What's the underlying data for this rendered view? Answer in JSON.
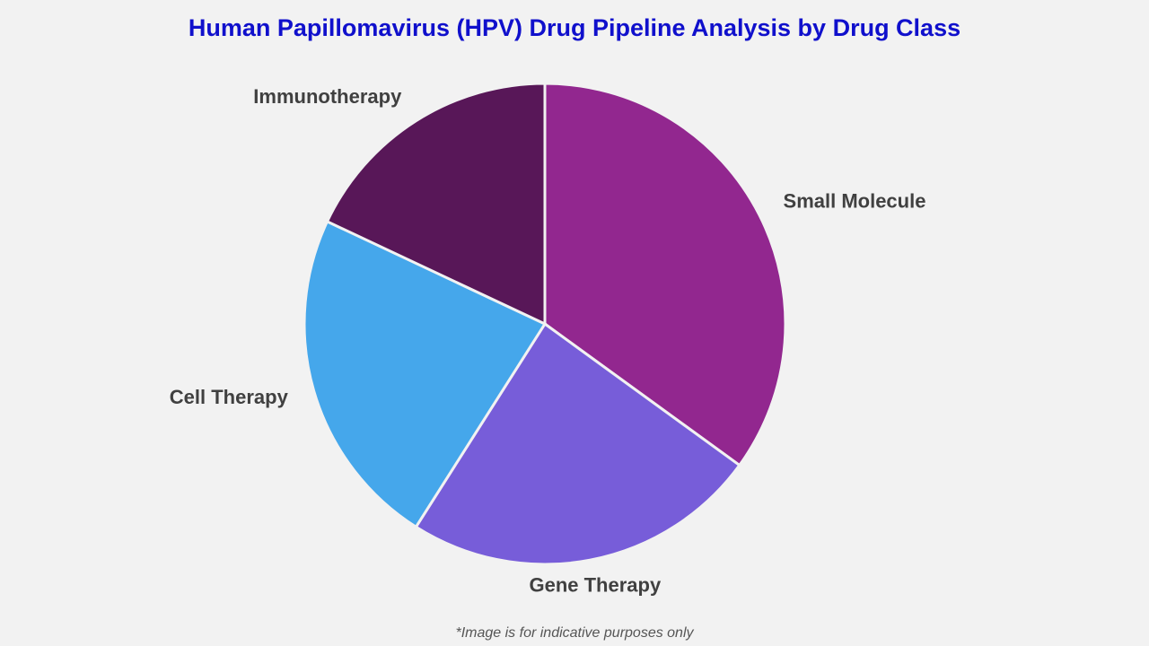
{
  "chart_data": {
    "type": "pie",
    "title": "Human Papillomavirus (HPV) Drug Pipeline Analysis by Drug Class",
    "slices": [
      {
        "label": "Small Molecule",
        "value": 35,
        "color": "#92278f"
      },
      {
        "label": "Gene Therapy",
        "value": 24,
        "color": "#775dd9"
      },
      {
        "label": "Cell Therapy",
        "value": 23,
        "color": "#45a7eb"
      },
      {
        "label": "Immunotherapy",
        "value": 18,
        "color": "#581758"
      }
    ],
    "start_angle": "top (12 o'clock), clockwise",
    "legend": "none (labels outside slices)"
  },
  "footnote": "*Image is for indicative purposes only"
}
